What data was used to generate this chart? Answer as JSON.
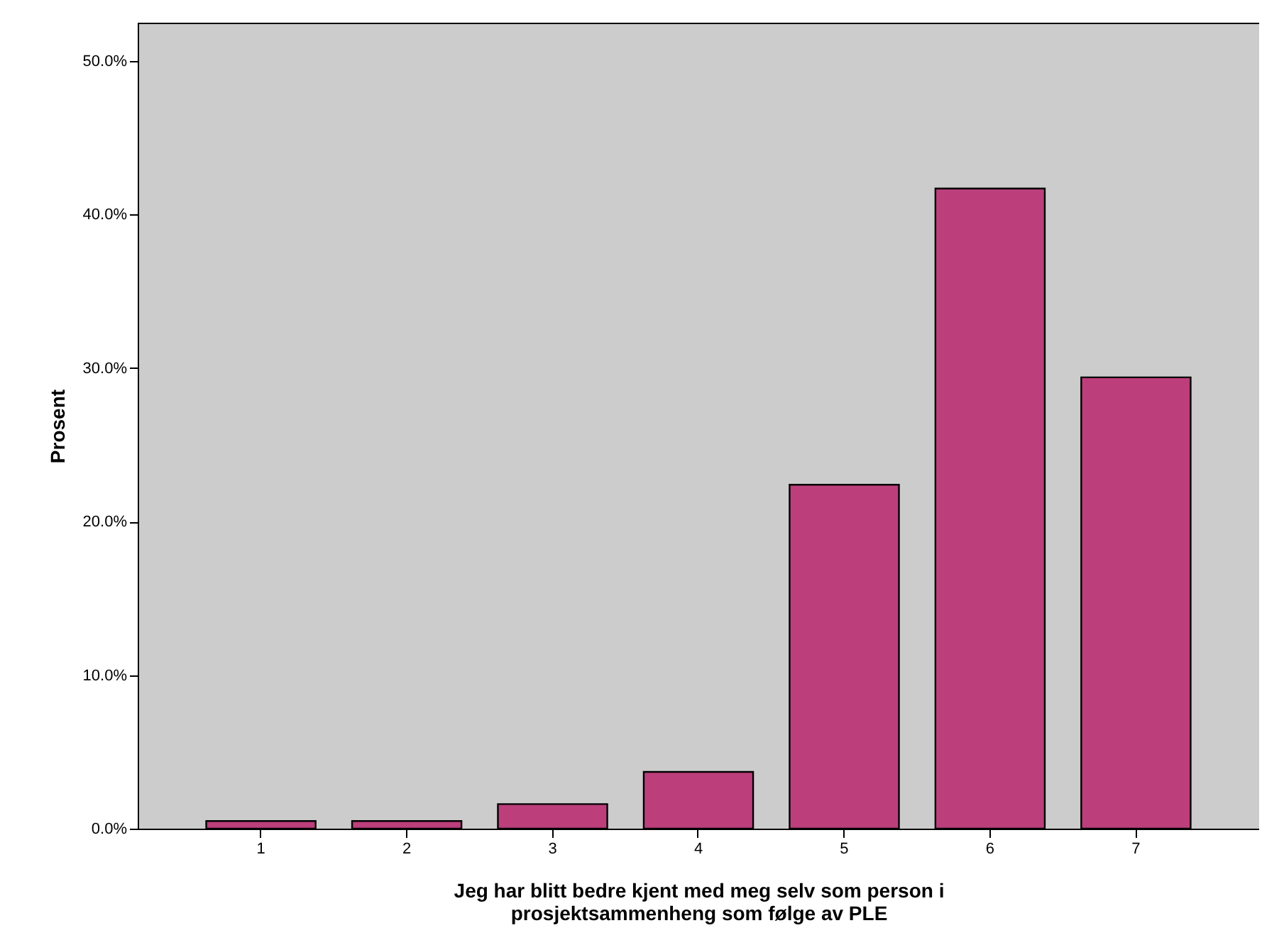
{
  "chart_data": {
    "type": "bar",
    "xlabel": "Jeg har blitt bedre kjent med meg selv som person i\nprosjektsammenheng som følge av PLE",
    "ylabel": "Prosent",
    "categories": [
      "1",
      "2",
      "3",
      "4",
      "5",
      "6",
      "7"
    ],
    "values": [
      0.5,
      0.5,
      1.6,
      3.7,
      22.4,
      41.7,
      29.4
    ],
    "color": "#bc3f7c",
    "ylim": [
      0,
      52.5
    ],
    "yticks": [
      {
        "value": 0,
        "label": "0.0%"
      },
      {
        "value": 10,
        "label": "10.0%"
      },
      {
        "value": 20,
        "label": "20.0%"
      },
      {
        "value": 30,
        "label": "30.0%"
      },
      {
        "value": 40,
        "label": "40.0%"
      },
      {
        "value": 50,
        "label": "50.0%"
      }
    ],
    "grid": false
  }
}
